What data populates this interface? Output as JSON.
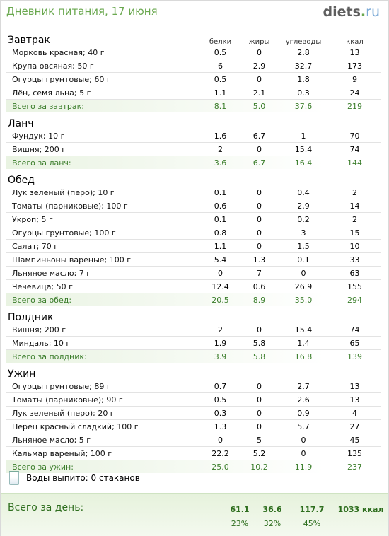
{
  "header": {
    "title": "Дневник питания, 17 июня",
    "logo_main": "diets",
    "logo_dot": ".",
    "logo_dom": "ru"
  },
  "columns": {
    "protein": "белки",
    "fat": "жиры",
    "carbs": "углеводы",
    "kcal": "ккал"
  },
  "meals": [
    {
      "name": "Завтрак",
      "items": [
        [
          "Морковь красная; 40 г",
          "0.5",
          "0",
          "2.8",
          "13"
        ],
        [
          "Крупа овсяная; 50 г",
          "6",
          "2.9",
          "32.7",
          "173"
        ],
        [
          "Огурцы грунтовые; 60 г",
          "0.5",
          "0",
          "1.8",
          "9"
        ],
        [
          "Лён, семя льна; 5 г",
          "1.1",
          "2.1",
          "0.3",
          "24"
        ]
      ],
      "total": [
        "Всего за завтрак:",
        "8.1",
        "5.0",
        "37.6",
        "219"
      ]
    },
    {
      "name": "Ланч",
      "items": [
        [
          "Фундук; 10 г",
          "1.6",
          "6.7",
          "1",
          "70"
        ],
        [
          "Вишня; 200 г",
          "2",
          "0",
          "15.4",
          "74"
        ]
      ],
      "total": [
        "Всего за ланч:",
        "3.6",
        "6.7",
        "16.4",
        "144"
      ]
    },
    {
      "name": "Обед",
      "items": [
        [
          "Лук зеленый (перо); 10 г",
          "0.1",
          "0",
          "0.4",
          "2"
        ],
        [
          "Томаты (парниковые); 100 г",
          "0.6",
          "0",
          "2.9",
          "14"
        ],
        [
          "Укроп; 5 г",
          "0.1",
          "0",
          "0.2",
          "2"
        ],
        [
          "Огурцы грунтовые; 100 г",
          "0.8",
          "0",
          "3",
          "15"
        ],
        [
          "Салат; 70 г",
          "1.1",
          "0",
          "1.5",
          "10"
        ],
        [
          "Шампиньоны вареные; 100 г",
          "5.4",
          "1.3",
          "0.1",
          "33"
        ],
        [
          "Льняное масло; 7 г",
          "0",
          "7",
          "0",
          "63"
        ],
        [
          "Чечевица; 50 г",
          "12.4",
          "0.6",
          "26.9",
          "155"
        ]
      ],
      "total": [
        "Всего за обед:",
        "20.5",
        "8.9",
        "35.0",
        "294"
      ]
    },
    {
      "name": "Полдник",
      "items": [
        [
          "Вишня; 200 г",
          "2",
          "0",
          "15.4",
          "74"
        ],
        [
          "Миндаль; 10 г",
          "1.9",
          "5.8",
          "1.4",
          "65"
        ]
      ],
      "total": [
        "Всего за полдник:",
        "3.9",
        "5.8",
        "16.8",
        "139"
      ]
    },
    {
      "name": "Ужин",
      "items": [
        [
          "Огурцы грунтовые; 89 г",
          "0.7",
          "0",
          "2.7",
          "13"
        ],
        [
          "Томаты (парниковые); 90 г",
          "0.5",
          "0",
          "2.6",
          "13"
        ],
        [
          "Лук зеленый (перо); 20 г",
          "0.3",
          "0",
          "0.9",
          "4"
        ],
        [
          "Перец красный сладкий; 100 г",
          "1.3",
          "0",
          "5.7",
          "27"
        ],
        [
          "Льняное масло; 5 г",
          "0",
          "5",
          "0",
          "45"
        ],
        [
          "Кальмар вареный; 100 г",
          "22.2",
          "5.2",
          "0",
          "135"
        ]
      ],
      "total": [
        "Всего за ужин:",
        "25.0",
        "10.2",
        "11.9",
        "237"
      ]
    }
  ],
  "water": {
    "icon": "glass-icon",
    "text": "Воды выпито: 0 стаканов"
  },
  "day_total": {
    "label": "Всего за день:",
    "values": [
      "61.1",
      "36.6",
      "117.7",
      "1033 ккал"
    ],
    "percents": [
      "23%",
      "32%",
      "45%"
    ]
  }
}
